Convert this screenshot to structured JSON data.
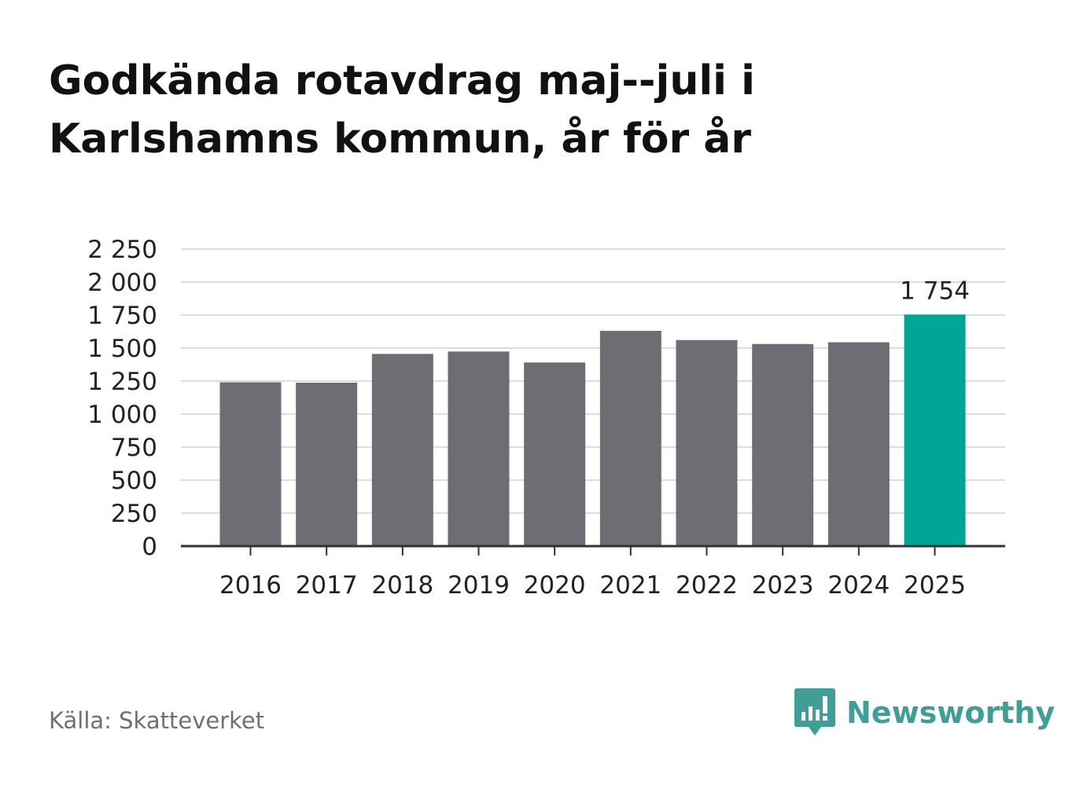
{
  "header": {
    "title_line1": "Godkända rotavdrag maj--juli i",
    "title_line2": "Karlshamns kommun, år för år"
  },
  "footer": {
    "source": "Källa: Skatteverket",
    "brand": "Newsworthy",
    "brand_icon": "bar-chart-speech-bubble-icon"
  },
  "colors": {
    "bar": "#6e6d73",
    "highlight": "#00a598",
    "grid": "#dcdcdc",
    "axis": "#333333",
    "brand": "#3f9e96"
  },
  "chart_data": {
    "type": "bar",
    "title": "Godkända rotavdrag maj--juli i Karlshamns kommun, år för år",
    "xlabel": "",
    "ylabel": "",
    "categories": [
      "2016",
      "2017",
      "2018",
      "2019",
      "2020",
      "2021",
      "2022",
      "2023",
      "2024",
      "2025"
    ],
    "values": [
      1241,
      1238,
      1456,
      1474,
      1391,
      1631,
      1561,
      1531,
      1544,
      1754
    ],
    "ylim": [
      0,
      2250
    ],
    "yticks": [
      0,
      250,
      500,
      750,
      1000,
      1250,
      1500,
      1750,
      2000,
      2250
    ],
    "ytick_labels": [
      "0",
      "250",
      "500",
      "750",
      "1 000",
      "1 250",
      "1 500",
      "1 750",
      "2 000",
      "2 250"
    ],
    "highlight_index": 9,
    "data_labels": [
      {
        "index": 9,
        "text": "1 754"
      }
    ],
    "grid": "horizontal",
    "legend": "none"
  }
}
